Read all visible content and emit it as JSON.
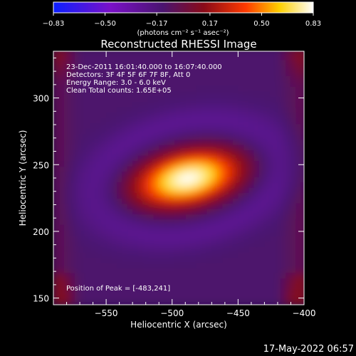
{
  "chart_data": {
    "type": "heatmap",
    "title": "Reconstructed RHESSI Image",
    "xlabel": "Heliocentric X (arcsec)",
    "ylabel": "Heliocentric Y (arcsec)",
    "xlim": [
      -590,
      -400
    ],
    "ylim": [
      145,
      335
    ],
    "x_ticks": [
      -550,
      -500,
      -450,
      -400
    ],
    "y_ticks": [
      150,
      200,
      250,
      300
    ],
    "x_tick_labels": [
      "−550",
      "−500",
      "−450",
      "−400"
    ],
    "y_tick_labels": [
      "150",
      "200",
      "250",
      "300"
    ],
    "colorbar": {
      "range": [
        -0.83,
        0.83
      ],
      "ticks": [
        -0.83,
        -0.5,
        -0.17,
        0.17,
        0.5,
        0.83
      ],
      "tick_labels": [
        "−0.83",
        "−0.50",
        "−0.17",
        "0.17",
        "0.50",
        "0.83"
      ],
      "colors": [
        "#0b1fff",
        "#7a10c8",
        "#4a1470",
        "#8a0a18",
        "#ff3a00",
        "#ffd000",
        "#ffffff"
      ]
    },
    "units_label": "(photons cm⁻² s⁻¹ asec⁻²)",
    "annotations": [
      "23-Dec-2011 16:01:40.000 to 16:07:40.000",
      "Detectors: 3F 4F 5F 6F 7F 8F, Att 0",
      "Energy Range: 3.0 - 6.0 keV",
      "Clean    Total counts: 1.65E+05"
    ],
    "peak_label": "Position of Peak = [-483,241]",
    "peak": {
      "x": -483,
      "y": 241,
      "value": 0.83
    },
    "source": {
      "center_x": -488,
      "center_y": 240,
      "sigma_major": 27,
      "sigma_minor": 13,
      "rotation_deg": 12
    },
    "background_value": -0.12
  },
  "footer": {
    "date_stamp": "17-May-2022 06:57"
  }
}
